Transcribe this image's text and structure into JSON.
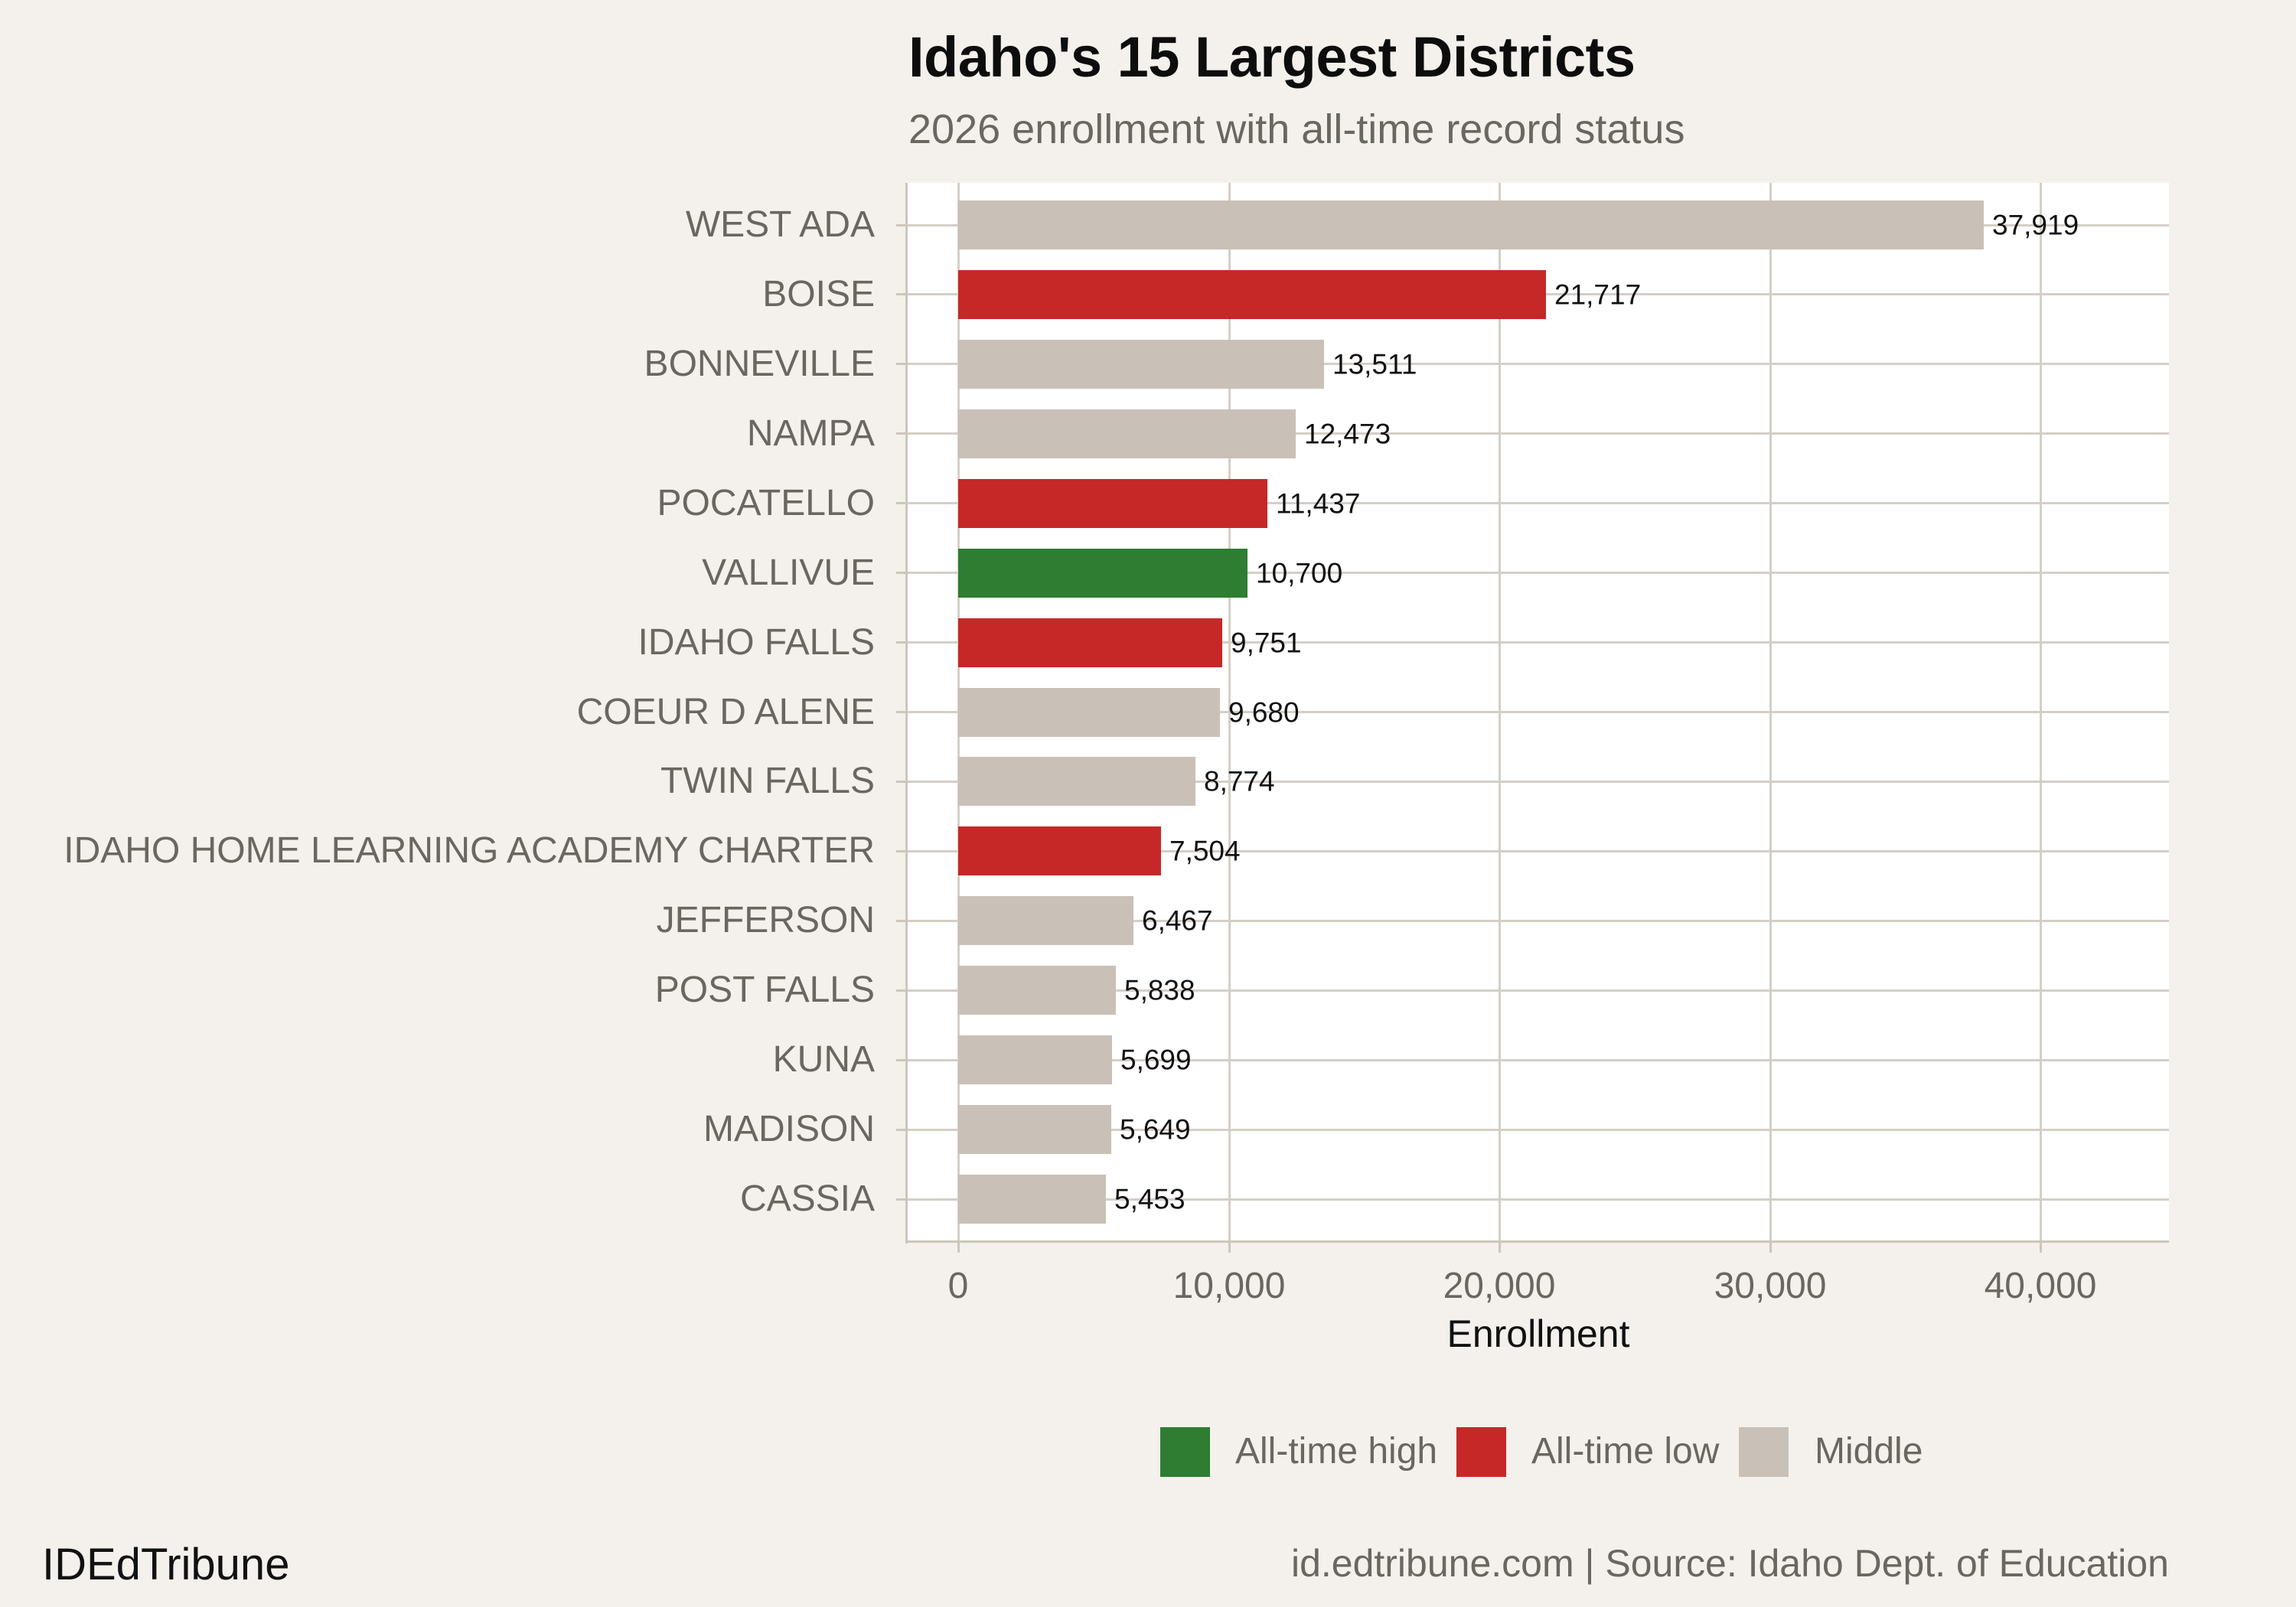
{
  "header": {
    "title": "Idaho's 15 Largest Districts",
    "subtitle": "2026 enrollment with all-time record status"
  },
  "colors": {
    "all_time_high": "#2e7d32",
    "all_time_low": "#c62828",
    "middle": "#c9c1b7",
    "background": "#f4f1ec",
    "panel": "#ffffff",
    "grid": "#d4cfc6"
  },
  "legend": {
    "items": [
      {
        "label": "All-time high",
        "color": "#2e7d32"
      },
      {
        "label": "All-time low",
        "color": "#c62828"
      },
      {
        "label": "Middle",
        "color": "#c9c1b7"
      }
    ]
  },
  "footer": {
    "brand": "IDEdTribune",
    "source": "id.edtribune.com | Source: Idaho Dept. of Education"
  },
  "chart_data": {
    "type": "bar",
    "orientation": "horizontal",
    "title": "Idaho's 15 Largest Districts",
    "subtitle": "2026 enrollment with all-time record status",
    "xlabel": "Enrollment",
    "ylabel": "",
    "xlim": [
      0,
      44500
    ],
    "xticks": [
      0,
      10000,
      20000,
      30000,
      40000
    ],
    "xtick_labels": [
      "0",
      "10,000",
      "20,000",
      "30,000",
      "40,000"
    ],
    "grid": true,
    "legend_position": "bottom",
    "categories": [
      "WEST ADA",
      "BOISE",
      "BONNEVILLE",
      "NAMPA",
      "POCATELLO",
      "VALLIVUE",
      "IDAHO FALLS",
      "COEUR D ALENE",
      "TWIN FALLS",
      "IDAHO HOME LEARNING ACADEMY CHARTER",
      "JEFFERSON",
      "POST FALLS",
      "KUNA",
      "MADISON",
      "CASSIA"
    ],
    "values": [
      37919,
      21717,
      13511,
      12473,
      11437,
      10700,
      9751,
      9680,
      8774,
      7504,
      6467,
      5838,
      5699,
      5649,
      5453
    ],
    "value_labels": [
      "37,919",
      "21,717",
      "13,511",
      "12,473",
      "11,437",
      "10,700",
      "9,751",
      "9,680",
      "8,774",
      "7,504",
      "6,467",
      "5,838",
      "5,699",
      "5,649",
      "5,453"
    ],
    "status": [
      "Middle",
      "All-time low",
      "Middle",
      "Middle",
      "All-time low",
      "All-time high",
      "All-time low",
      "Middle",
      "Middle",
      "All-time low",
      "Middle",
      "Middle",
      "Middle",
      "Middle",
      "Middle"
    ]
  }
}
